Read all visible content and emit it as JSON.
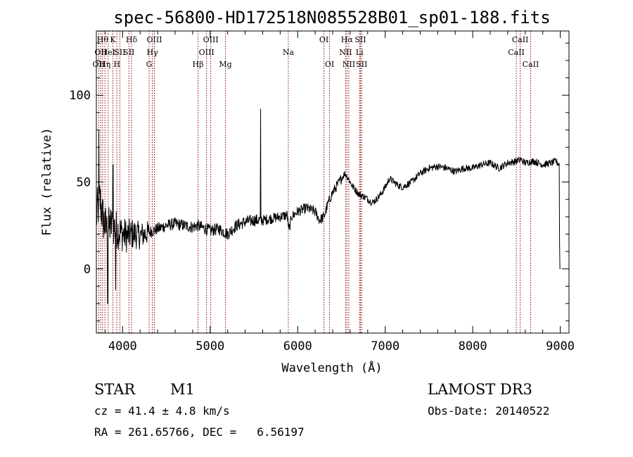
{
  "chart_data": {
    "type": "line",
    "title": "spec-56800-HD172518N085528B01_sp01-188.fits",
    "xlabel": "Wavelength (Å)",
    "ylabel": "Flux (relative)",
    "xlim": [
      3700,
      9100
    ],
    "ylim": [
      -37,
      137
    ],
    "xticks": [
      4000,
      5000,
      6000,
      7000,
      8000,
      9000
    ],
    "yticks": [
      0,
      50,
      100
    ],
    "series": [
      {
        "name": "spectrum",
        "anchors": [
          [
            3700,
            30
          ],
          [
            3740,
            40
          ],
          [
            3780,
            28
          ],
          [
            3820,
            22
          ],
          [
            3860,
            25
          ],
          [
            3900,
            24
          ],
          [
            3950,
            22
          ],
          [
            4000,
            20
          ],
          [
            4050,
            19
          ],
          [
            4100,
            20
          ],
          [
            4150,
            20
          ],
          [
            4200,
            19
          ],
          [
            4250,
            20
          ],
          [
            4300,
            21
          ],
          [
            4350,
            22
          ],
          [
            4400,
            23
          ],
          [
            4500,
            25
          ],
          [
            4600,
            26
          ],
          [
            4700,
            25
          ],
          [
            4800,
            24
          ],
          [
            4850,
            25
          ],
          [
            4900,
            24
          ],
          [
            5000,
            22
          ],
          [
            5100,
            23
          ],
          [
            5200,
            20
          ],
          [
            5300,
            25
          ],
          [
            5400,
            27
          ],
          [
            5500,
            28
          ],
          [
            5570,
            28
          ],
          [
            5600,
            28
          ],
          [
            5700,
            29
          ],
          [
            5800,
            30
          ],
          [
            5880,
            31
          ],
          [
            5900,
            22
          ],
          [
            5930,
            30
          ],
          [
            6000,
            33
          ],
          [
            6100,
            35
          ],
          [
            6200,
            33
          ],
          [
            6250,
            28
          ],
          [
            6300,
            30
          ],
          [
            6350,
            38
          ],
          [
            6400,
            44
          ],
          [
            6450,
            48
          ],
          [
            6500,
            52
          ],
          [
            6540,
            55
          ],
          [
            6580,
            52
          ],
          [
            6620,
            48
          ],
          [
            6700,
            43
          ],
          [
            6780,
            41
          ],
          [
            6850,
            38
          ],
          [
            6900,
            40
          ],
          [
            6950,
            43
          ],
          [
            7000,
            47
          ],
          [
            7050,
            52
          ],
          [
            7100,
            50
          ],
          [
            7150,
            48
          ],
          [
            7200,
            47
          ],
          [
            7300,
            50
          ],
          [
            7400,
            55
          ],
          [
            7500,
            58
          ],
          [
            7600,
            59
          ],
          [
            7700,
            58
          ],
          [
            7800,
            56
          ],
          [
            7900,
            58
          ],
          [
            8000,
            58
          ],
          [
            8100,
            60
          ],
          [
            8200,
            61
          ],
          [
            8300,
            58
          ],
          [
            8400,
            61
          ],
          [
            8500,
            62
          ],
          [
            8550,
            63
          ],
          [
            8600,
            61
          ],
          [
            8700,
            62
          ],
          [
            8800,
            60
          ],
          [
            8900,
            61
          ],
          [
            8950,
            62
          ],
          [
            8990,
            60
          ]
        ],
        "features": [
          {
            "x": 3728,
            "peak": 80
          },
          {
            "x": 3830,
            "min": -20
          },
          {
            "x": 3890,
            "peak": 60
          },
          {
            "x": 3920,
            "min": -12
          },
          {
            "x": 5577,
            "peak": 92
          },
          {
            "x": 8992,
            "min": 15
          },
          {
            "x": 8998,
            "min": 0
          }
        ]
      }
    ],
    "emission_lines": [
      {
        "x": 3727,
        "label": "OII",
        "row": 2
      },
      {
        "x": 3750,
        "label": "OII",
        "row": 1
      },
      {
        "x": 3771,
        "label": "Hθ",
        "row": 0
      },
      {
        "x": 3798,
        "label": "Hη",
        "row": 2
      },
      {
        "x": 3835,
        "label": "HeI",
        "row": 1
      },
      {
        "x": 3889,
        "label": "K",
        "row": 0
      },
      {
        "x": 3934,
        "label": "H",
        "row": 2
      },
      {
        "x": 3969,
        "label": "SII",
        "row": 1
      },
      {
        "x": 4102,
        "label": "Hδ",
        "row": 0
      },
      {
        "x": 4072,
        "label": "SII",
        "row": 1
      },
      {
        "x": 4303,
        "label": "G",
        "row": 2
      },
      {
        "x": 4340,
        "label": "Hγ",
        "row": 1
      },
      {
        "x": 4363,
        "label": "OIII",
        "row": 0
      },
      {
        "x": 4861,
        "label": "Hβ",
        "row": 2
      },
      {
        "x": 4959,
        "label": "OIII",
        "row": 1
      },
      {
        "x": 5007,
        "label": "OIII",
        "row": 0
      },
      {
        "x": 5175,
        "label": "Mg",
        "row": 2
      },
      {
        "x": 5893,
        "label": "Na",
        "row": 1
      },
      {
        "x": 6300,
        "label": "OI",
        "row": 0
      },
      {
        "x": 6364,
        "label": "OI",
        "row": 2
      },
      {
        "x": 6548,
        "label": "NII",
        "row": 1
      },
      {
        "x": 6563,
        "label": "Hα",
        "row": 0
      },
      {
        "x": 6584,
        "label": "NII",
        "row": 2
      },
      {
        "x": 6707,
        "label": "Li",
        "row": 1
      },
      {
        "x": 6717,
        "label": "SII",
        "row": 0
      },
      {
        "x": 6731,
        "label": "SII",
        "row": 2
      },
      {
        "x": 8498,
        "label": "CaII",
        "row": 1
      },
      {
        "x": 8542,
        "label": "CaII",
        "row": 0
      },
      {
        "x": 8662,
        "label": "CaII",
        "row": 2
      }
    ]
  },
  "info": {
    "class_label": "STAR",
    "subclass": "M1",
    "cz": "cz = 41.4 ± 4.8 km/s",
    "coords": "RA = 261.65766, DEC =   6.56197",
    "survey": "LAMOST DR3",
    "obs_date": "Obs-Date: 20140522"
  },
  "colors": {
    "line_marker": "#8b0000",
    "spectrum": "#000000",
    "frame": "#000000"
  }
}
